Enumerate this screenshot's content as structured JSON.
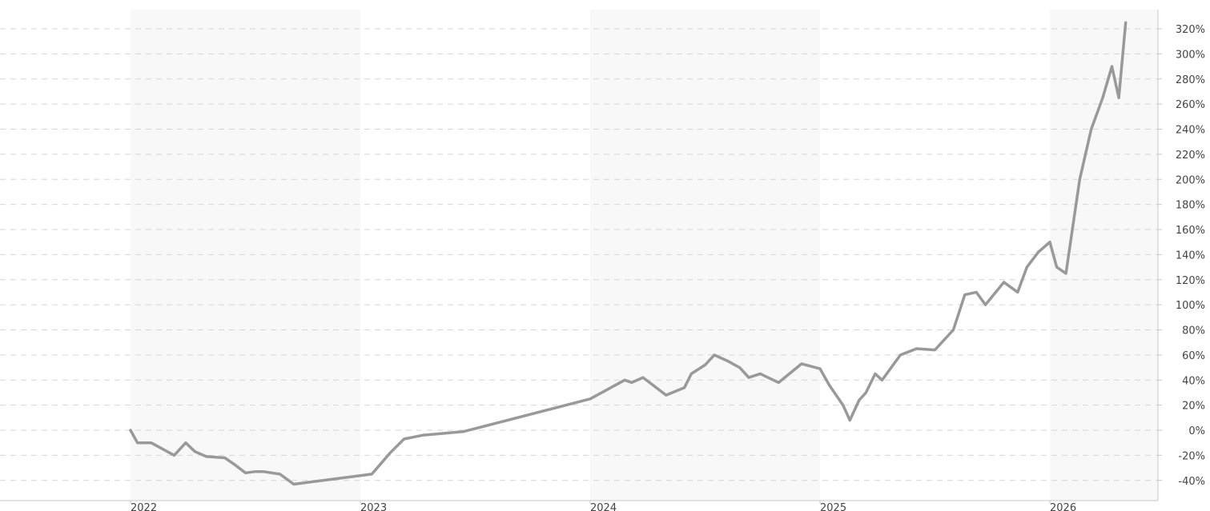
{
  "chart_data": {
    "type": "line",
    "title": "",
    "xlabel": "",
    "ylabel": "",
    "x_tick_labels": [
      "2022",
      "2023",
      "2024",
      "2025",
      "2026"
    ],
    "y_tick_labels": [
      "-40%",
      "-20%",
      "0%",
      "20%",
      "40%",
      "60%",
      "80%",
      "100%",
      "120%",
      "140%",
      "160%",
      "180%",
      "200%",
      "220%",
      "240%",
      "260%",
      "280%",
      "300%",
      "320%"
    ],
    "ylim": [
      -40,
      320
    ],
    "grid": true,
    "alternating_year_bands": true,
    "series": [
      {
        "color": "#999999",
        "x": [
          2022.0,
          2022.03,
          2022.09,
          2022.19,
          2022.24,
          2022.28,
          2022.33,
          2022.41,
          2022.45,
          2022.5,
          2022.54,
          2022.58,
          2022.65,
          2022.71,
          2023.05,
          2023.13,
          2023.19,
          2023.27,
          2023.33,
          2023.45,
          2024.0,
          2024.15,
          2024.18,
          2024.23,
          2024.28,
          2024.33,
          2024.41,
          2024.44,
          2024.5,
          2024.54,
          2024.6,
          2024.65,
          2024.69,
          2024.74,
          2024.82,
          2024.92,
          2025.0,
          2025.04,
          2025.1,
          2025.13,
          2025.17,
          2025.2,
          2025.24,
          2025.27,
          2025.35,
          2025.42,
          2025.5,
          2025.58,
          2025.63,
          2025.68,
          2025.72,
          2025.8,
          2025.86,
          2025.9,
          2025.95,
          2026.0,
          2026.03,
          2026.07,
          2026.13,
          2026.18,
          2026.23,
          2026.27,
          2026.3,
          2026.33
        ],
        "y": [
          0,
          -10,
          -10,
          -20,
          -10,
          -17,
          -21,
          -22,
          -27,
          -34,
          -33,
          -33,
          -35,
          -43,
          -35,
          -18,
          -7,
          -4,
          -3,
          -1,
          25,
          40,
          38,
          42,
          35,
          28,
          34,
          45,
          52,
          60,
          55,
          50,
          42,
          45,
          38,
          53,
          49,
          36,
          20,
          8,
          24,
          30,
          45,
          40,
          60,
          65,
          64,
          80,
          108,
          110,
          100,
          118,
          110,
          130,
          142,
          150,
          130,
          125,
          200,
          240,
          265,
          290,
          265,
          325
        ]
      }
    ]
  }
}
